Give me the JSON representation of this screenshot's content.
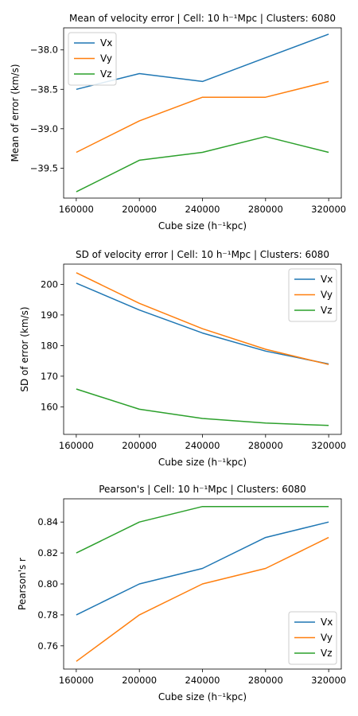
{
  "colors": {
    "Vx": "#1f77b4",
    "Vy": "#ff7f0e",
    "Vz": "#2ca02c"
  },
  "chart_data": [
    {
      "type": "line",
      "title": "Mean of velocity error | Cell: 10 h⁻¹Mpc | Clusters: 6080",
      "xlabel": "Cube size (h⁻¹kpc)",
      "ylabel": "Mean of error (km/s)",
      "x": [
        160000,
        200000,
        240000,
        280000,
        320000
      ],
      "xticks": [
        "160000",
        "200000",
        "240000",
        "280000",
        "320000"
      ],
      "xlim": [
        152000,
        328000
      ],
      "ylim": [
        -39.88,
        -37.72
      ],
      "yticks": [
        -39.5,
        -39.0,
        -38.5,
        -38.0
      ],
      "ytick_labels": [
        "−39.5",
        "−39.0",
        "−38.5",
        "−38.0"
      ],
      "legend_loc": "upper-left",
      "series": [
        {
          "name": "Vx",
          "values": [
            -38.5,
            -38.3,
            -38.4,
            -38.1,
            -37.8
          ]
        },
        {
          "name": "Vy",
          "values": [
            -39.3,
            -38.9,
            -38.6,
            -38.6,
            -38.4
          ]
        },
        {
          "name": "Vz",
          "values": [
            -39.8,
            -39.4,
            -39.3,
            -39.1,
            -39.3
          ]
        }
      ]
    },
    {
      "type": "line",
      "title": "SD of velocity error | Cell: 10 h⁻¹Mpc | Clusters: 6080",
      "xlabel": "Cube size (h⁻¹kpc)",
      "ylabel": "SD of error (km/s)",
      "x": [
        160000,
        200000,
        240000,
        280000,
        320000
      ],
      "xticks": [
        "160000",
        "200000",
        "240000",
        "280000",
        "320000"
      ],
      "xlim": [
        152000,
        328000
      ],
      "ylim": [
        151.0,
        206.6
      ],
      "yticks": [
        160,
        170,
        180,
        190,
        200
      ],
      "ytick_labels": [
        "160",
        "170",
        "180",
        "190",
        "200"
      ],
      "legend_loc": "upper-right",
      "series": [
        {
          "name": "Vx",
          "values": [
            200.4,
            191.6,
            184.1,
            178.2,
            174.0
          ]
        },
        {
          "name": "Vy",
          "values": [
            203.8,
            193.8,
            185.5,
            178.8,
            173.8
          ]
        },
        {
          "name": "Vz",
          "values": [
            165.8,
            159.2,
            156.2,
            154.7,
            153.9
          ]
        }
      ]
    },
    {
      "type": "line",
      "title": "Pearson's | Cell: 10 h⁻¹Mpc | Clusters: 6080",
      "xlabel": "Cube size (h⁻¹kpc)",
      "ylabel": "Pearson's r",
      "x": [
        160000,
        200000,
        240000,
        280000,
        320000
      ],
      "xticks": [
        "160000",
        "200000",
        "240000",
        "280000",
        "320000"
      ],
      "xlim": [
        152000,
        328000
      ],
      "ylim": [
        0.745,
        0.855
      ],
      "yticks": [
        0.76,
        0.78,
        0.8,
        0.82,
        0.84
      ],
      "ytick_labels": [
        "0.76",
        "0.78",
        "0.80",
        "0.82",
        "0.84"
      ],
      "legend_loc": "lower-right",
      "series": [
        {
          "name": "Vx",
          "values": [
            0.78,
            0.8,
            0.81,
            0.83,
            0.84
          ]
        },
        {
          "name": "Vy",
          "values": [
            0.75,
            0.78,
            0.8,
            0.81,
            0.83
          ]
        },
        {
          "name": "Vz",
          "values": [
            0.82,
            0.84,
            0.85,
            0.85,
            0.85
          ]
        }
      ]
    }
  ]
}
